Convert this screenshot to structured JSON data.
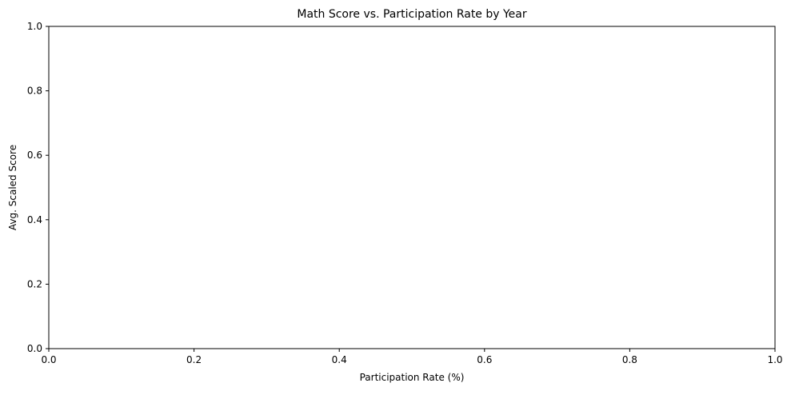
{
  "chart_data": {
    "type": "scatter",
    "title": "Math Score vs. Participation Rate by Year",
    "xlabel": "Participation Rate (%)",
    "ylabel": "Avg. Scaled Score",
    "xlim": [
      0.0,
      1.0
    ],
    "ylim": [
      0.0,
      1.0
    ],
    "xticks": [
      "0.0",
      "0.2",
      "0.4",
      "0.6",
      "0.8",
      "1.0"
    ],
    "yticks": [
      "0.0",
      "0.2",
      "0.4",
      "0.6",
      "0.8",
      "1.0"
    ],
    "grid": false,
    "series": []
  }
}
